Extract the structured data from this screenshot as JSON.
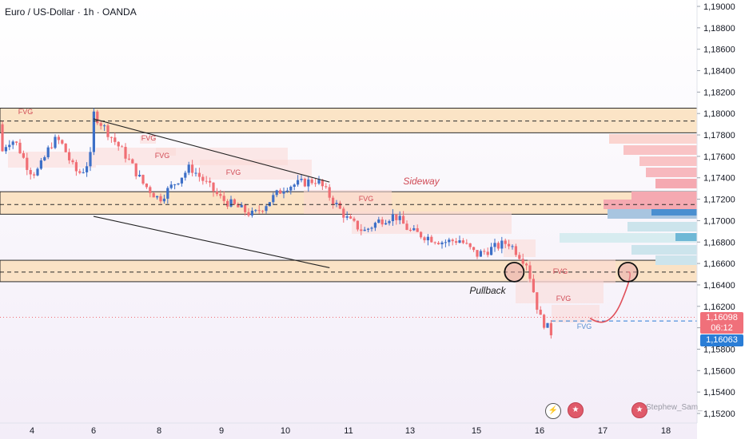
{
  "header": {
    "title": "Euro / US-Dollar · 1h · OANDA"
  },
  "price_tags": {
    "last_price": "1,16098",
    "countdown": "06:12",
    "blue_price": "1,16063"
  },
  "watermark": "Stephew_Sam_",
  "icons": [
    "flash-icon",
    "us-flag-icon",
    "us-flag-icon"
  ],
  "colors": {
    "bull": "#3d6fc7",
    "bear": "#f06e74",
    "zone": "#fbdcb3",
    "fvg": "#f9cbcb",
    "background_top": "#ffffff",
    "background_bottom": "#f3edf8"
  },
  "chart_data": {
    "type": "candlestick",
    "title": "Euro / US-Dollar · 1h · OANDA",
    "x_ticks": [
      "4",
      "6",
      "8",
      "9",
      "10",
      "11",
      "13",
      "15",
      "16",
      "17",
      "18"
    ],
    "y_ticks": [
      "1,19000",
      "1,18800",
      "1,18600",
      "1,18400",
      "1,18200",
      "1,18000",
      "1,17800",
      "1,17600",
      "1,17400",
      "1,17200",
      "1,17000",
      "1,16800",
      "1,16600",
      "1,16400",
      "1,16200",
      "1,16000",
      "1,15800",
      "1,15600",
      "1,15400",
      "1,15200"
    ],
    "ylim": [
      1.151,
      1.191
    ],
    "zones": [
      {
        "from": 1.1782,
        "to": 1.1805
      },
      {
        "from": 1.1706,
        "to": 1.1727
      },
      {
        "from": 1.1643,
        "to": 1.1663
      }
    ],
    "dashed_levels": [
      1.1793,
      1.1715,
      1.1652,
      1.16063
    ],
    "annotations": [
      "FVG",
      "FVG",
      "FVG",
      "FVG",
      "FVG",
      "FVG",
      "FVG",
      "FVG",
      "Sideway",
      "Pullback"
    ],
    "path_points": [
      [
        6.0,
        1.18
      ],
      [
        6.5,
        1.178
      ],
      [
        7.0,
        1.176
      ],
      [
        7.5,
        1.1735
      ],
      [
        8.0,
        1.172
      ],
      [
        8.5,
        1.175
      ],
      [
        9.0,
        1.172
      ],
      [
        9.5,
        1.1705
      ],
      [
        10.0,
        1.1732
      ],
      [
        10.5,
        1.1738
      ],
      [
        11.0,
        1.17
      ],
      [
        11.5,
        1.169
      ],
      [
        12.0,
        1.17
      ],
      [
        12.5,
        1.1705
      ],
      [
        13.0,
        1.169
      ],
      [
        13.5,
        1.1685
      ],
      [
        14.0,
        1.168
      ],
      [
        14.5,
        1.1682
      ],
      [
        15.0,
        1.1668
      ],
      [
        15.5,
        1.168
      ],
      [
        15.8,
        1.166
      ],
      [
        16.0,
        1.161
      ],
      [
        16.2,
        1.1594
      ],
      [
        16.5,
        1.1606
      ],
      [
        16.8,
        1.1609
      ]
    ],
    "projection": [
      [
        16.8,
        1.1609
      ],
      [
        17.1,
        1.1604
      ],
      [
        17.3,
        1.1625
      ],
      [
        17.4,
        1.1652
      ]
    ]
  }
}
